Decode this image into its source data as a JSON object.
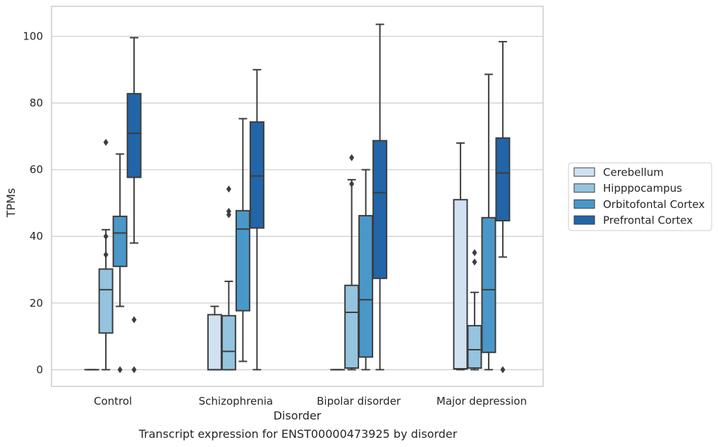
{
  "caption": "Transcript expression for ENST00000473925 by disorder",
  "chart_data": {
    "type": "box",
    "xlabel": "Disorder",
    "ylabel": "TPMs",
    "ylim": [
      -5,
      109
    ],
    "yticks": [
      0,
      20,
      40,
      60,
      80,
      100
    ],
    "grid": true,
    "legend_position": "right",
    "categories": [
      "Control",
      "Schizophrenia",
      "Bipolar disorder",
      "Major depression"
    ],
    "series": [
      {
        "name": "Cerebellum",
        "color": "#d0e1f2",
        "boxes": [
          {
            "whislo": 0,
            "q1": 0,
            "med": 0,
            "q3": 0,
            "whishi": 0,
            "fliers": []
          },
          {
            "whislo": 0,
            "q1": 0,
            "med": 0,
            "q3": 16.5,
            "whishi": 19,
            "fliers": []
          },
          {
            "whislo": 0,
            "q1": 0,
            "med": 0,
            "q3": 0,
            "whishi": 0,
            "fliers": []
          },
          {
            "whislo": 0,
            "q1": 0.2,
            "med": 0.3,
            "q3": 51,
            "whishi": 68,
            "fliers": []
          }
        ]
      },
      {
        "name": "Hipppocampus",
        "color": "#94c4df",
        "boxes": [
          {
            "whislo": 0,
            "q1": 11,
            "med": 24,
            "q3": 30.2,
            "whishi": 42,
            "fliers": [
              34.5,
              40,
              68.2
            ]
          },
          {
            "whislo": 0,
            "q1": 0,
            "med": 5.5,
            "q3": 16.2,
            "whishi": 26.5,
            "fliers": [
              46.5,
              47.5,
              54.2
            ]
          },
          {
            "whislo": 0,
            "q1": 0.5,
            "med": 17.2,
            "q3": 25.3,
            "whishi": 57,
            "fliers": [
              55.7,
              63.6
            ]
          },
          {
            "whislo": 0,
            "q1": 0.5,
            "med": 6,
            "q3": 13.2,
            "whishi": 23.2,
            "fliers": [
              32.3,
              35.1
            ]
          }
        ]
      },
      {
        "name": "Orbitofontal Cortex",
        "color": "#4a98c9",
        "boxes": [
          {
            "whislo": 19,
            "q1": 31,
            "med": 41,
            "q3": 46,
            "whishi": 64.7,
            "fliers": [
              0
            ]
          },
          {
            "whislo": 2.5,
            "q1": 17.7,
            "med": 42.2,
            "q3": 47.7,
            "whishi": 75.3,
            "fliers": []
          },
          {
            "whislo": 0,
            "q1": 3.8,
            "med": 21,
            "q3": 46.2,
            "whishi": 60,
            "fliers": []
          },
          {
            "whislo": 0,
            "q1": 5.2,
            "med": 24,
            "q3": 45.6,
            "whishi": 88.6,
            "fliers": []
          }
        ]
      },
      {
        "name": "Prefrontal Cortex",
        "color": "#2265a8",
        "boxes": [
          {
            "whislo": 38,
            "q1": 57.7,
            "med": 70.9,
            "q3": 82.8,
            "whishi": 99.6,
            "fliers": [
              0,
              15
            ]
          },
          {
            "whislo": 0,
            "q1": 42.5,
            "med": 58.1,
            "q3": 74.3,
            "whishi": 90,
            "fliers": []
          },
          {
            "whislo": 0,
            "q1": 27.4,
            "med": 53.1,
            "q3": 68.7,
            "whishi": 103.6,
            "fliers": []
          },
          {
            "whislo": 33.8,
            "q1": 44.7,
            "med": 59,
            "q3": 69.5,
            "whishi": 98.4,
            "fliers": [
              0
            ]
          }
        ]
      }
    ]
  }
}
